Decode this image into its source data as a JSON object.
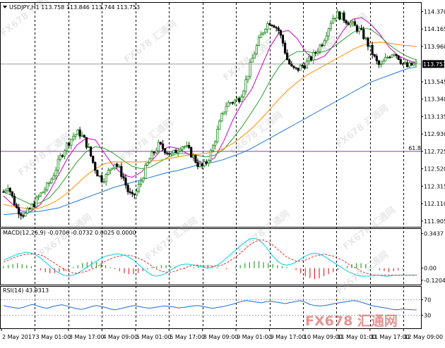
{
  "symbol_header": {
    "text": "USDJPY,H1  113.758 113.846 113.744 113.753",
    "arrow_icon": "triangle-down-icon"
  },
  "current_price": "113.753",
  "fib_label": "61.8",
  "macd_label": "MACD(12,26,9) -0.0706 -0.0732 0.0025 0.0000",
  "rsi_label": "RSI(14) 43.9313",
  "watermark": "FX678 汇通网",
  "colors": {
    "bull": "#1a8a1a",
    "bear": "#000000",
    "ma_fast": "#cc00cc",
    "ma_mid": "#2ca02c",
    "ma_slow": "#ff8c00",
    "ma_long": "#1e78d2",
    "fib": "#8040a0",
    "macd_hist_pos": "#2ca02c",
    "macd_hist_neg": "#e03030",
    "macd_main": "#00cfe8",
    "macd_signal": "#e03030",
    "rsi": "#1e6ad8"
  },
  "chart_data": [
    {
      "type": "candlestick",
      "title": "USDJPY,H1",
      "price_ticks": [
        "114.370",
        "114.165",
        "113.960",
        "113.753",
        "113.545",
        "113.340",
        "113.135",
        "112.930",
        "112.725",
        "112.520",
        "112.315",
        "112.110",
        "111.905"
      ],
      "time_ticks": [
        "2 May 2017",
        "3 May 01:00",
        "3 May 17:00",
        "4 May 09:00",
        "5 May 01:00",
        "5 May 17:00",
        "8 May 09:00",
        "9 May 01:00",
        "9 May 17:00",
        "10 May 09:00",
        "11 May 01:00",
        "11 May 17:00",
        "12 May 09:00"
      ],
      "ylim": [
        111.87,
        114.44
      ],
      "fib_level": 112.725,
      "close_path": [
        112.25,
        112.33,
        112.18,
        112.05,
        112.0,
        111.98,
        112.05,
        112.12,
        112.2,
        112.26,
        112.32,
        112.42,
        112.55,
        112.68,
        112.78,
        112.86,
        112.92,
        112.95,
        112.88,
        112.78,
        112.62,
        112.48,
        112.4,
        112.42,
        112.52,
        112.6,
        112.52,
        112.42,
        112.26,
        112.18,
        112.25,
        112.38,
        112.52,
        112.64,
        112.72,
        112.8,
        112.76,
        112.72,
        112.68,
        112.74,
        112.8,
        112.78,
        112.72,
        112.64,
        112.56,
        112.54,
        112.62,
        112.74,
        112.92,
        113.1,
        113.26,
        113.3,
        113.32,
        113.34,
        113.45,
        113.62,
        113.8,
        113.95,
        114.08,
        114.2,
        114.25,
        114.22,
        114.15,
        114.0,
        113.8,
        113.7,
        113.68,
        113.72,
        113.75,
        113.8,
        113.86,
        113.94,
        114.02,
        114.15,
        114.28,
        114.34,
        114.32,
        114.28,
        114.24,
        114.2,
        114.16,
        114.1,
        114.0,
        113.9,
        113.78,
        113.72,
        113.8,
        113.86,
        113.9,
        113.84,
        113.76,
        113.72,
        113.74,
        113.75
      ],
      "series": [
        {
          "name": "MA fast",
          "points": [
            112.2,
            112.1,
            112.02,
            112.02,
            112.1,
            112.25,
            112.45,
            112.65,
            112.8,
            112.88,
            112.86,
            112.7,
            112.55,
            112.45,
            112.42,
            112.48,
            112.6,
            112.72,
            112.78,
            112.76,
            112.7,
            112.62,
            112.58,
            112.65,
            112.85,
            113.1,
            113.3,
            113.45,
            113.7,
            113.95,
            114.12,
            114.15,
            114.05,
            113.88,
            113.8,
            113.85,
            113.98,
            114.15,
            114.28,
            114.3,
            114.22,
            114.1,
            113.95,
            113.85,
            113.8,
            113.76
          ]
        },
        {
          "name": "MA mid",
          "points": [
            112.25,
            112.2,
            112.15,
            112.1,
            112.12,
            112.18,
            112.3,
            112.45,
            112.6,
            112.72,
            112.78,
            112.76,
            112.7,
            112.62,
            112.55,
            112.52,
            112.54,
            112.6,
            112.66,
            112.7,
            112.7,
            112.68,
            112.66,
            112.68,
            112.75,
            112.88,
            113.02,
            113.18,
            113.35,
            113.55,
            113.72,
            113.84,
            113.9,
            113.9,
            113.88,
            113.9,
            113.96,
            114.04,
            114.12,
            114.18,
            114.16,
            114.08,
            113.98,
            113.9,
            113.84,
            113.8
          ]
        },
        {
          "name": "MA slow",
          "points": [
            112.1,
            112.08,
            112.06,
            112.05,
            112.06,
            112.1,
            112.16,
            112.24,
            112.34,
            112.44,
            112.52,
            112.58,
            112.6,
            112.6,
            112.6,
            112.6,
            112.61,
            112.62,
            112.64,
            112.66,
            112.68,
            112.69,
            112.7,
            112.72,
            112.76,
            112.82,
            112.9,
            112.99,
            113.1,
            113.22,
            113.34,
            113.45,
            113.54,
            113.62,
            113.68,
            113.74,
            113.8,
            113.86,
            113.92,
            113.97,
            114.0,
            114.01,
            114.0,
            113.98,
            113.97,
            113.96
          ]
        },
        {
          "name": "MA long",
          "points": [
            111.98,
            111.99,
            112.0,
            112.01,
            112.02,
            112.04,
            112.06,
            112.1,
            112.14,
            112.18,
            112.22,
            112.26,
            112.3,
            112.33,
            112.36,
            112.39,
            112.42,
            112.45,
            112.48,
            112.5,
            112.53,
            112.56,
            112.58,
            112.6,
            112.63,
            112.67,
            112.71,
            112.76,
            112.82,
            112.88,
            112.94,
            113.0,
            113.06,
            113.12,
            113.18,
            113.24,
            113.3,
            113.36,
            113.42,
            113.48,
            113.54,
            113.58,
            113.62,
            113.66,
            113.7,
            113.72
          ]
        }
      ]
    },
    {
      "type": "macd",
      "title": "MACD(12,26,9)",
      "ticks": [
        "0.3437",
        "0.00",
        "-0.1204"
      ],
      "ylim": [
        -0.15,
        0.37
      ],
      "series": [
        {
          "name": "histogram",
          "values": [
            0.02,
            0.03,
            0.04,
            0.05,
            0.04,
            0.03,
            0.02,
            0.0,
            -0.02,
            -0.04,
            -0.05,
            -0.05,
            -0.04,
            -0.03,
            -0.01,
            0.01,
            0.03,
            0.05,
            0.06,
            0.07,
            0.06,
            0.05,
            0.03,
            0.01,
            -0.01,
            -0.03,
            -0.05,
            -0.06,
            -0.06,
            -0.05,
            -0.03,
            -0.01,
            0.01,
            0.02,
            0.03,
            0.03,
            0.02,
            0.01,
            0.0,
            -0.01,
            0.0,
            0.01,
            0.02,
            0.03,
            0.03,
            0.02,
            0.01,
            0.0,
            -0.01,
            0.0,
            0.01,
            0.03,
            0.05,
            0.06,
            0.07,
            0.07,
            0.06,
            0.05,
            0.04,
            0.03,
            0.02,
            0.01,
            0.0,
            -0.02,
            -0.05,
            -0.08,
            -0.1,
            -0.11,
            -0.1,
            -0.08,
            -0.06,
            -0.04,
            -0.02,
            0.0,
            0.02,
            0.04,
            0.05,
            0.05,
            0.04,
            0.02,
            0.0,
            -0.02,
            -0.03,
            -0.04,
            -0.03,
            -0.02,
            -0.01,
            0.0,
            0.0,
            0.0
          ]
        },
        {
          "name": "main",
          "values": [
            0.08,
            0.1,
            0.12,
            0.14,
            0.15,
            0.16,
            0.15,
            0.13,
            0.1,
            0.06,
            0.02,
            -0.02,
            -0.05,
            -0.07,
            -0.08,
            -0.07,
            -0.05,
            -0.02,
            0.01,
            0.04,
            0.07,
            0.1,
            0.12,
            0.13,
            0.14,
            0.14,
            0.13,
            0.11,
            0.08,
            0.04,
            0.0,
            -0.04,
            -0.07,
            -0.08,
            -0.07,
            -0.05,
            -0.02,
            0.01,
            0.03,
            0.04,
            0.04,
            0.03,
            0.02,
            0.01,
            0.0,
            0.01,
            0.03,
            0.06,
            0.1,
            0.14,
            0.18,
            0.22,
            0.26,
            0.29,
            0.3,
            0.28,
            0.24,
            0.18,
            0.12,
            0.07,
            0.04,
            0.03,
            0.04,
            0.06,
            0.09,
            0.12,
            0.14,
            0.15,
            0.14,
            0.12,
            0.09,
            0.06,
            0.03,
            0.0,
            -0.03,
            -0.05,
            -0.07,
            -0.08,
            -0.08,
            -0.08,
            -0.07,
            -0.07,
            -0.08,
            -0.08,
            -0.07,
            -0.07,
            -0.07,
            -0.07,
            -0.07,
            -0.07
          ]
        },
        {
          "name": "signal",
          "values": [
            0.06,
            0.08,
            0.1,
            0.12,
            0.13,
            0.14,
            0.14,
            0.14,
            0.13,
            0.11,
            0.08,
            0.05,
            0.02,
            -0.01,
            -0.03,
            -0.05,
            -0.05,
            -0.04,
            -0.03,
            -0.01,
            0.01,
            0.04,
            0.07,
            0.09,
            0.11,
            0.12,
            0.13,
            0.13,
            0.12,
            0.1,
            0.08,
            0.05,
            0.02,
            -0.01,
            -0.03,
            -0.04,
            -0.04,
            -0.03,
            -0.01,
            0.0,
            0.02,
            0.03,
            0.03,
            0.02,
            0.02,
            0.02,
            0.02,
            0.03,
            0.05,
            0.08,
            0.11,
            0.15,
            0.19,
            0.23,
            0.26,
            0.28,
            0.28,
            0.26,
            0.23,
            0.19,
            0.15,
            0.11,
            0.09,
            0.07,
            0.07,
            0.08,
            0.1,
            0.12,
            0.13,
            0.14,
            0.13,
            0.12,
            0.1,
            0.08,
            0.05,
            0.02,
            0.0,
            -0.03,
            -0.05,
            -0.06,
            -0.07,
            -0.07,
            -0.07,
            -0.07,
            -0.07,
            -0.07,
            -0.07,
            -0.07,
            -0.07,
            -0.07
          ]
        }
      ]
    },
    {
      "type": "line",
      "title": "RSI(14)",
      "ticks": [
        "70",
        "30"
      ],
      "ylim": [
        0,
        100
      ],
      "values": [
        55,
        52,
        50,
        48,
        50,
        55,
        58,
        54,
        50,
        48,
        52,
        55,
        57,
        54,
        50,
        47,
        45,
        48,
        52,
        55,
        53,
        50,
        46,
        44,
        47,
        50,
        53,
        55,
        52,
        50,
        48,
        50,
        52,
        54,
        53,
        51,
        49,
        50,
        52,
        54,
        55,
        53,
        50,
        48,
        50,
        52,
        55,
        58,
        62,
        66,
        68,
        66,
        64,
        62,
        65,
        66,
        64,
        62,
        60,
        63,
        65,
        68,
        64,
        58,
        55,
        54,
        55,
        57,
        60,
        62,
        64,
        66,
        68,
        66,
        62,
        58,
        54,
        52,
        50,
        48,
        45,
        44,
        46,
        45,
        44,
        43.9
      ]
    }
  ]
}
